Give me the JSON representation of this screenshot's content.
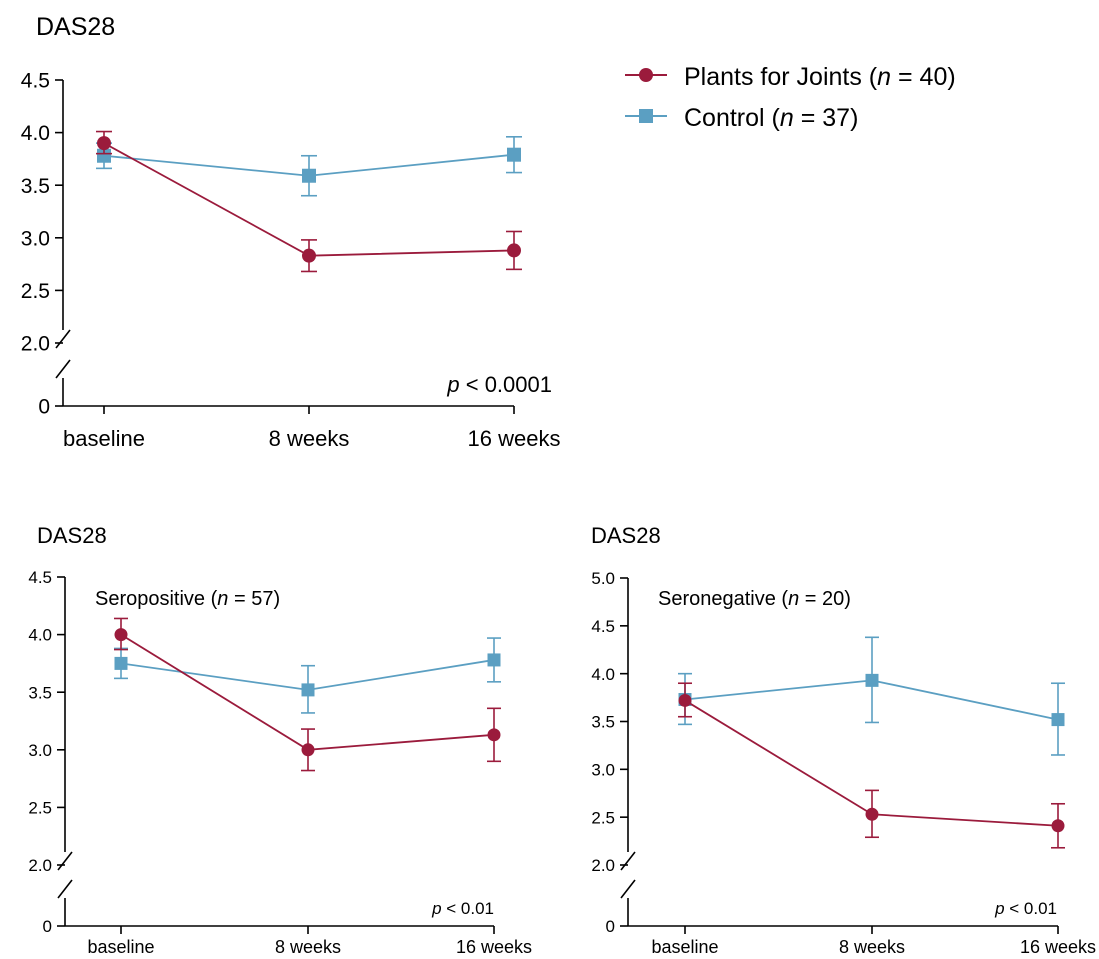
{
  "colors": {
    "plants": "#9b1b3c",
    "control": "#5b9fc2"
  },
  "legend": {
    "plants": {
      "label": "Plants for Joints (",
      "n": "n",
      "rest": " = 40)"
    },
    "control": {
      "label": "Control (",
      "n": "n",
      "rest": " = 37)"
    }
  },
  "chart_data": [
    {
      "type": "line",
      "panel_label": "",
      "ylabel": "DAS28",
      "categories": [
        "baseline",
        "8 weeks",
        "16 weeks"
      ],
      "yticks": [
        "0",
        "2.0",
        "2.5",
        "3.0",
        "3.5",
        "4.0",
        "4.5"
      ],
      "ylim": [
        2.0,
        4.5
      ],
      "axis_break": true,
      "pvalue": {
        "p": "p",
        "text": " < 0.0001"
      },
      "series": [
        {
          "name": "Plants for Joints",
          "key": "plants",
          "marker": "circle",
          "values": [
            3.9,
            2.83,
            2.88
          ],
          "err_low": [
            3.8,
            2.68,
            2.7
          ],
          "err_high": [
            4.01,
            2.98,
            3.06
          ]
        },
        {
          "name": "Control",
          "key": "control",
          "marker": "square",
          "values": [
            3.78,
            3.59,
            3.79
          ],
          "err_low": [
            3.66,
            3.4,
            3.62
          ],
          "err_high": [
            3.9,
            3.78,
            3.96
          ]
        }
      ]
    },
    {
      "type": "line",
      "panel_label": {
        "pre": "Seropositive (",
        "n": "n",
        "post": " = 57)"
      },
      "ylabel": "DAS28",
      "categories": [
        "baseline",
        "8 weeks",
        "16 weeks"
      ],
      "yticks": [
        "0",
        "2.0",
        "2.5",
        "3.0",
        "3.5",
        "4.0",
        "4.5"
      ],
      "ylim": [
        2.0,
        4.5
      ],
      "axis_break": true,
      "pvalue": {
        "p": "p",
        "text": " < 0.01"
      },
      "series": [
        {
          "name": "Plants for Joints",
          "key": "plants",
          "marker": "circle",
          "values": [
            4.0,
            3.0,
            3.13
          ],
          "err_low": [
            3.87,
            2.82,
            2.9
          ],
          "err_high": [
            4.14,
            3.18,
            3.36
          ]
        },
        {
          "name": "Control",
          "key": "control",
          "marker": "square",
          "values": [
            3.75,
            3.52,
            3.78
          ],
          "err_low": [
            3.62,
            3.32,
            3.59
          ],
          "err_high": [
            3.88,
            3.73,
            3.97
          ]
        }
      ]
    },
    {
      "type": "line",
      "panel_label": {
        "pre": "Seronegative (",
        "n": "n",
        "post": " = 20)"
      },
      "ylabel": "DAS28",
      "categories": [
        "baseline",
        "8 weeks",
        "16 weeks"
      ],
      "yticks": [
        "0",
        "2.0",
        "2.5",
        "3.0",
        "3.5",
        "4.0",
        "4.5",
        "5.0"
      ],
      "ylim": [
        2.0,
        5.0
      ],
      "axis_break": true,
      "pvalue": {
        "p": "p",
        "text": " < 0.01"
      },
      "series": [
        {
          "name": "Plants for Joints",
          "key": "plants",
          "marker": "circle",
          "values": [
            3.72,
            2.53,
            2.41
          ],
          "err_low": [
            3.55,
            2.29,
            2.18
          ],
          "err_high": [
            3.9,
            2.78,
            2.64
          ]
        },
        {
          "name": "Control",
          "key": "control",
          "marker": "square",
          "values": [
            3.73,
            3.93,
            3.52
          ],
          "err_low": [
            3.47,
            3.49,
            3.15
          ],
          "err_high": [
            4.0,
            4.38,
            3.9
          ]
        }
      ]
    }
  ]
}
